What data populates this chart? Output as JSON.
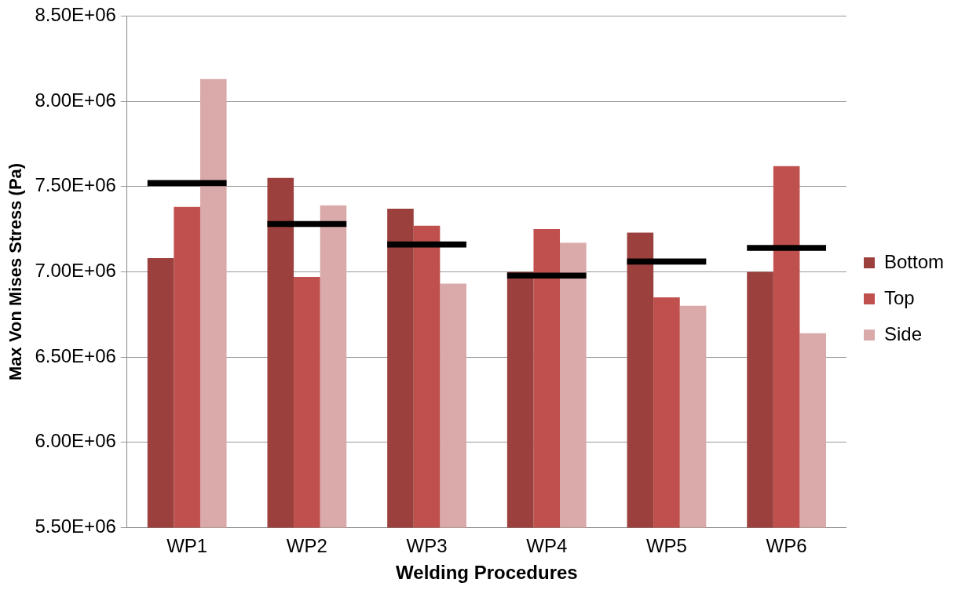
{
  "chart_data": {
    "type": "bar",
    "xlabel": "Welding Procedures",
    "ylabel": "Max Von Mises Stress (Pa)",
    "categories": [
      "WP1",
      "WP2",
      "WP3",
      "WP4",
      "WP5",
      "WP6"
    ],
    "series": [
      {
        "name": "Bottom",
        "color": "#9c403e",
        "values": [
          7080000,
          7550000,
          7370000,
          7000000,
          7230000,
          7000000
        ]
      },
      {
        "name": "Top",
        "color": "#c0504d",
        "values": [
          7380000,
          6970000,
          7270000,
          7250000,
          6850000,
          7620000
        ]
      },
      {
        "name": "Side",
        "color": "#daa9aa",
        "values": [
          8130000,
          7390000,
          6930000,
          7170000,
          6800000,
          6640000
        ]
      },
      {
        "type": "bar",
        "color": "#000000",
        "base": [
          7502500,
          7262500,
          7142500,
          6960000,
          7042500,
          7122500
        ],
        "values": [
          35000,
          35000,
          35000,
          35000,
          35000,
          35000
        ]
      }
    ],
    "ylim": [
      5500000,
      8500000
    ],
    "yticks": [
      {
        "value": 5500000,
        "label": "5.50E+06"
      },
      {
        "value": 6000000,
        "label": "6.00E+06"
      },
      {
        "value": 6500000,
        "label": "6.50E+06"
      },
      {
        "value": 7000000,
        "label": "7.00E+06"
      },
      {
        "value": 7500000,
        "label": "7.50E+06"
      },
      {
        "value": 8000000,
        "label": "8.00E+06"
      },
      {
        "value": 8500000,
        "label": "8.50E+06"
      }
    ],
    "grid": "y",
    "legend": "right"
  }
}
